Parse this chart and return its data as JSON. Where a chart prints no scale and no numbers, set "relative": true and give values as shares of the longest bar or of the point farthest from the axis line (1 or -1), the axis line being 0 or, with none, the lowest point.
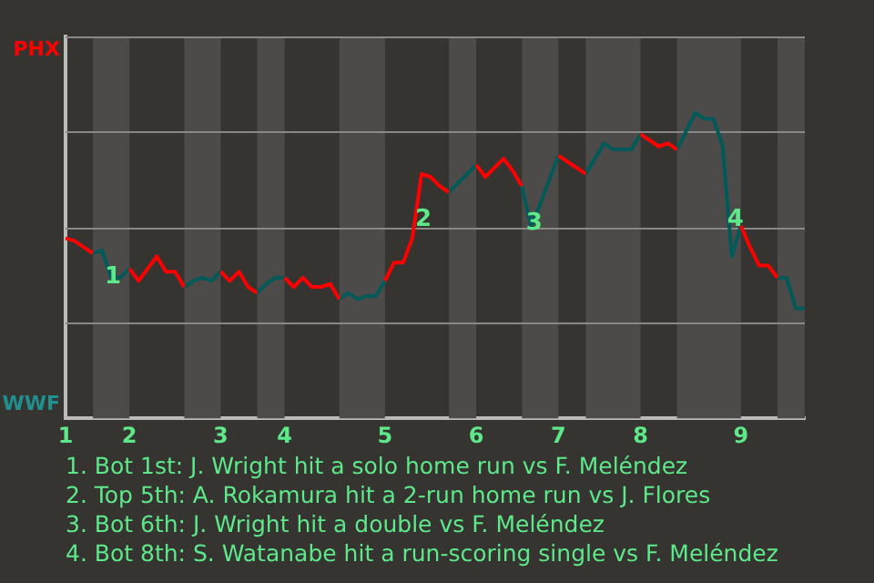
{
  "chart_data": {
    "type": "line",
    "relative": true,
    "categories": [
      "1",
      null,
      null,
      null,
      null,
      null,
      null,
      "2",
      null,
      null,
      null,
      null,
      null,
      null,
      null,
      null,
      null,
      "3",
      null,
      null,
      null,
      null,
      null,
      null,
      "4",
      null,
      null,
      null,
      null,
      null,
      null,
      null,
      null,
      null,
      null,
      "5",
      null,
      null,
      null,
      null,
      null,
      null,
      null,
      null,
      null,
      "6",
      null,
      null,
      null,
      null,
      null,
      null,
      null,
      null,
      "7",
      null,
      null,
      null,
      null,
      null,
      null,
      null,
      null,
      "8",
      null,
      null,
      null,
      null,
      null,
      null,
      null,
      null,
      null,
      null,
      "9",
      null,
      null,
      null,
      null,
      null,
      null,
      null
    ],
    "grid": "y",
    "legend": false,
    "marker": "none",
    "line_style": "solid",
    "series": [
      {
        "color": "#ff0000",
        "values": [
          0.59,
          0.58,
          0.56,
          0.54,
          null,
          null,
          null,
          0.49,
          0.45,
          0.49,
          0.53,
          0.48,
          0.48,
          0.43,
          null,
          null,
          null,
          0.48,
          0.45,
          0.48,
          0.43,
          0.41,
          null,
          null,
          0.46,
          0.43,
          0.46,
          0.43,
          0.43,
          0.44,
          0.39,
          null,
          null,
          null,
          null,
          0.45,
          0.51,
          0.51,
          0.59,
          0.8,
          0.79,
          0.76,
          0.74,
          null,
          null,
          0.83,
          0.79,
          0.82,
          0.85,
          0.81,
          0.76,
          null,
          null,
          null,
          0.86,
          0.84,
          0.82,
          0.8,
          null,
          null,
          null,
          null,
          null,
          0.93,
          0.91,
          0.89,
          0.9,
          0.88,
          null,
          null,
          null,
          null,
          null,
          null,
          0.63,
          0.56,
          0.5,
          0.5,
          0.46,
          null,
          null,
          null
        ]
      },
      {
        "color": "#005a5a",
        "values": [
          null,
          null,
          null,
          0.54,
          0.55,
          0.46,
          0.46,
          0.49,
          null,
          null,
          null,
          null,
          null,
          0.43,
          0.45,
          0.46,
          0.45,
          0.48,
          null,
          null,
          null,
          0.41,
          0.44,
          0.46,
          0.46,
          null,
          null,
          null,
          null,
          null,
          0.39,
          0.41,
          0.39,
          0.4,
          0.4,
          0.45,
          null,
          null,
          null,
          null,
          null,
          null,
          0.74,
          0.77,
          0.8,
          0.83,
          null,
          null,
          null,
          null,
          0.76,
          0.63,
          0.7,
          0.78,
          0.86,
          null,
          null,
          0.8,
          0.85,
          0.9,
          0.88,
          0.88,
          0.88,
          0.93,
          null,
          null,
          null,
          0.88,
          0.94,
          1,
          0.98,
          0.98,
          0.89,
          0.53,
          0.63,
          null,
          null,
          null,
          0.46,
          0.46,
          0.36,
          0.36
        ]
      }
    ],
    "annotations": [
      "PHX",
      "WWF",
      "1",
      "2",
      "3",
      "4",
      "1. Bot 1st: J. Wright hit a solo home run vs F. Meléndez",
      "2. Top 5th: A. Rokamura hit a 2-run home run vs J. Flores",
      "3. Bot 6th: J. Wright hit a double vs F. Meléndez",
      "4. Bot 8th: S. Watanabe hit a run-scoring single vs F. Meléndez"
    ]
  }
}
